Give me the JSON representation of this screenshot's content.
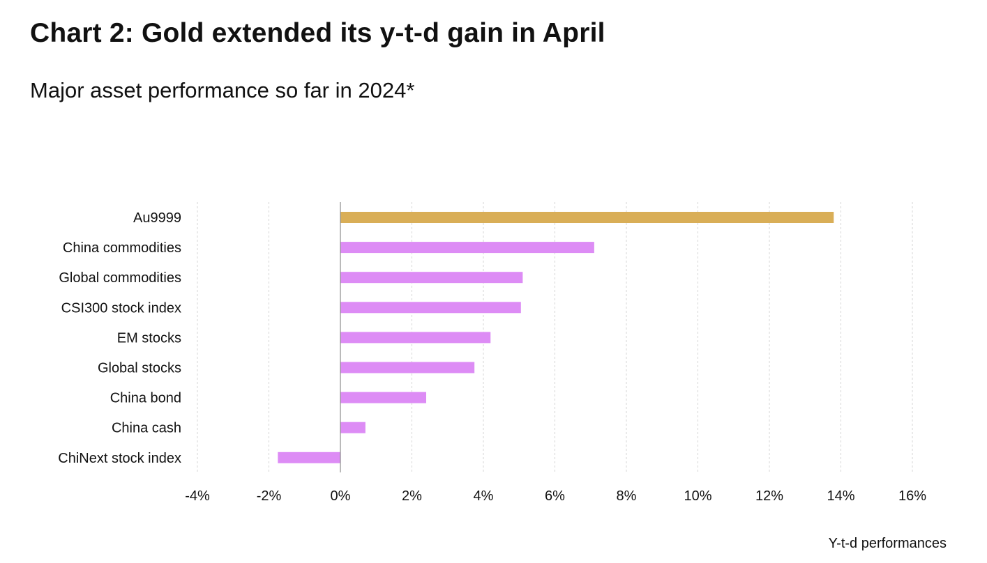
{
  "title": "Chart 2: Gold extended its y-t-d gain in April",
  "subtitle": "Major asset performance so far in 2024*",
  "chart_data": {
    "type": "bar",
    "orientation": "horizontal",
    "categories": [
      "Au9999",
      "China commodities",
      "Global commodities",
      "CSI300 stock index",
      "EM stocks",
      "Global stocks",
      "China bond",
      "China cash",
      "ChiNext stock index"
    ],
    "values": [
      13.8,
      7.1,
      5.1,
      5.05,
      4.2,
      3.75,
      2.4,
      0.7,
      -1.75
    ],
    "bar_colors": [
      "#D9AE57",
      "#DD8CF5",
      "#DD8CF5",
      "#DD8CF5",
      "#DD8CF5",
      "#DD8CF5",
      "#DD8CF5",
      "#DD8CF5",
      "#DD8CF5"
    ],
    "xlim": [
      -4,
      16
    ],
    "xticks": [
      -4,
      -2,
      0,
      2,
      4,
      6,
      8,
      10,
      12,
      14,
      16
    ],
    "tick_labels": [
      "-4%",
      "-2%",
      "0%",
      "2%",
      "4%",
      "6%",
      "8%",
      "10%",
      "12%",
      "14%",
      "16%"
    ],
    "xlabel": "Y-t-d performances",
    "ylabel": "",
    "grid": "vertical dashed",
    "legend": "none"
  }
}
